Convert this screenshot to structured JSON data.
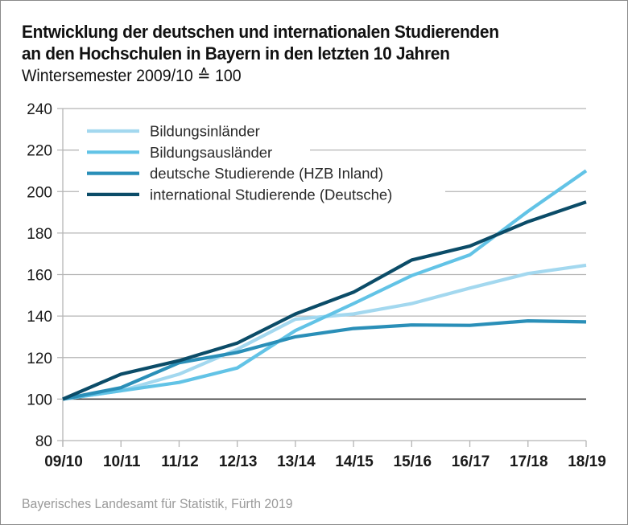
{
  "chart_data": {
    "type": "line",
    "title": "Entwicklung der deutschen und internationalen Studierenden an den Hochschulen in Bayern in den letzten 10 Jahren",
    "title_lines": [
      "Entwicklung der deutschen und internationalen Studierenden",
      "an den Hochschulen in Bayern in den letzten 10 Jahren"
    ],
    "subtitle": "Wintersemester 2009/10 ≙ 100",
    "xlabel": "",
    "ylabel": "",
    "x": [
      "09/10",
      "10/11",
      "11/12",
      "12/13",
      "13/14",
      "14/15",
      "15/16",
      "16/17",
      "17/18",
      "18/19"
    ],
    "ylim": [
      80,
      240
    ],
    "yticks": [
      80,
      100,
      120,
      140,
      160,
      180,
      200,
      220,
      240
    ],
    "reference_line": 100,
    "grid": true,
    "legend_position": "top-left",
    "series": [
      {
        "name": "Bildungsinländer",
        "color": "#a3d8ef",
        "values": [
          100,
          104,
          112,
          124,
          138.5,
          141,
          146,
          153.5,
          160.5,
          164.5
        ]
      },
      {
        "name": "Bildungsausländer",
        "color": "#62c3e6",
        "values": [
          100,
          104,
          108,
          115,
          133,
          146,
          159.5,
          169.5,
          190.5,
          210
        ]
      },
      {
        "name": "deutsche Studierende (HZB Inland)",
        "color": "#2a8fb8",
        "values": [
          100,
          105.5,
          117.5,
          122.5,
          130,
          134,
          135.7,
          135.5,
          137.7,
          137.2
        ]
      },
      {
        "name": "international Studierende (Deutsche)",
        "color": "#0b4c68",
        "values": [
          100,
          112,
          118.5,
          127,
          141,
          151.5,
          167,
          173.7,
          185.5,
          195
        ]
      }
    ]
  },
  "source": "Bayerisches Landesamt für Statistik, Fürth 2019"
}
